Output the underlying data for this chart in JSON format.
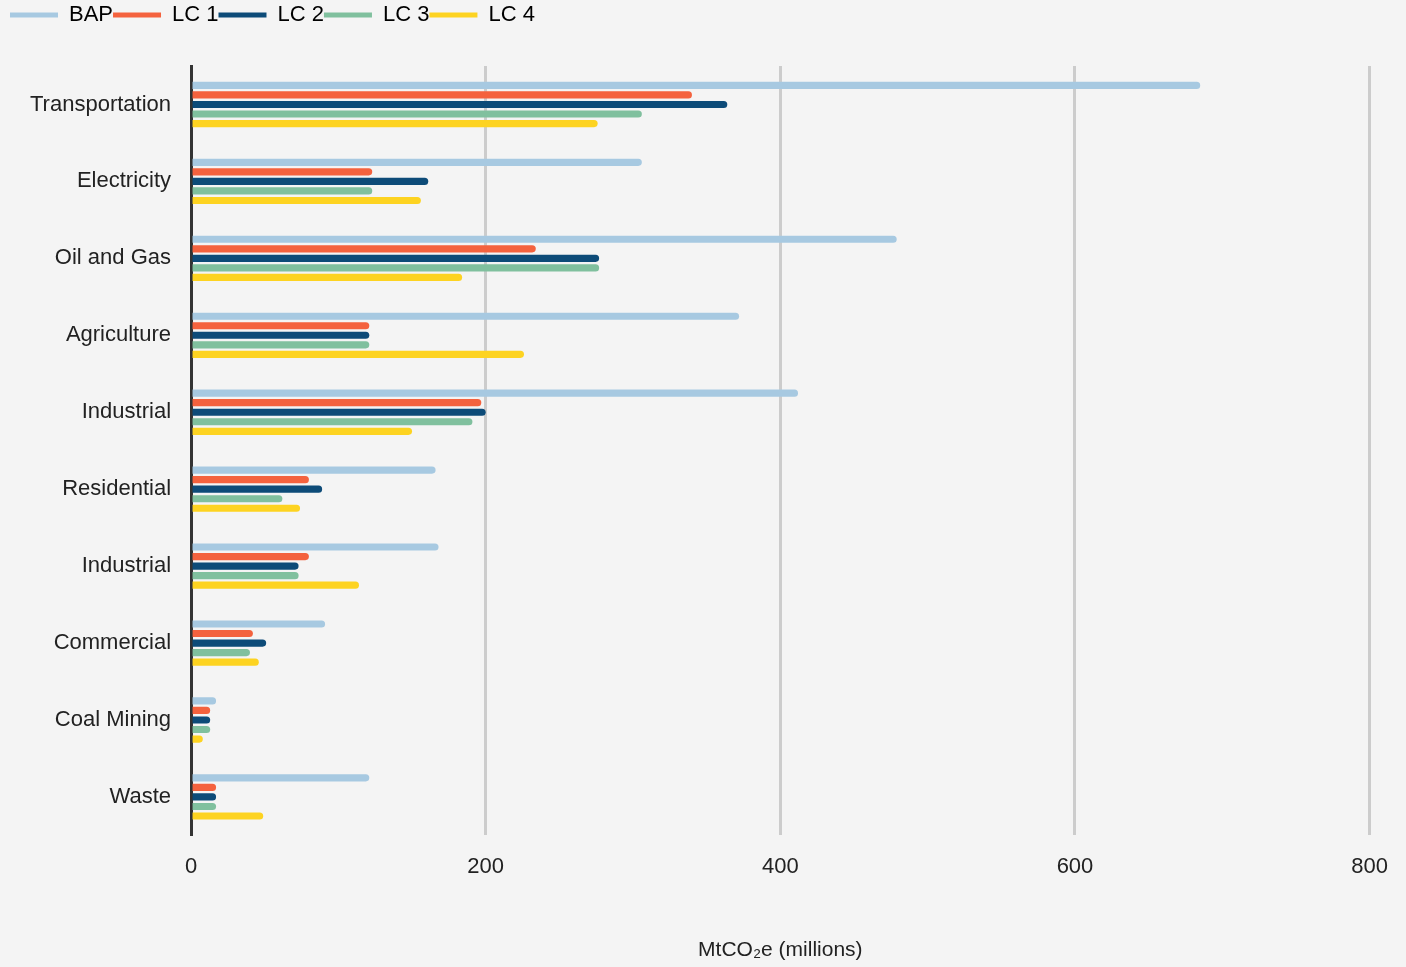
{
  "chart_data": {
    "type": "bar",
    "orientation": "horizontal",
    "xlabel": "MtCO₂e (millions)",
    "categories": [
      "Transportation",
      "Electricity",
      "Oil and Gas",
      "Agriculture",
      "Industrial",
      "Residential",
      "Industrial",
      "Commercial",
      "Coal Mining",
      "Waste"
    ],
    "series": [
      {
        "name": "BAP",
        "color": "#a7c9e1",
        "values": [
          685,
          306,
          479,
          372,
          412,
          166,
          168,
          91,
          17,
          121
        ]
      },
      {
        "name": "LC 1",
        "color": "#f4623e",
        "values": [
          340,
          123,
          234,
          121,
          197,
          80,
          80,
          42,
          13,
          17
        ]
      },
      {
        "name": "LC 2",
        "color": "#0d4b78",
        "values": [
          364,
          161,
          277,
          121,
          200,
          89,
          73,
          51,
          13,
          17
        ]
      },
      {
        "name": "LC 3",
        "color": "#80c09e",
        "values": [
          306,
          123,
          277,
          121,
          191,
          62,
          73,
          40,
          13,
          17
        ]
      },
      {
        "name": "LC 4",
        "color": "#fdd321",
        "values": [
          276,
          156,
          184,
          226,
          150,
          74,
          114,
          46,
          8,
          49
        ]
      }
    ],
    "xlim": [
      0,
      800
    ],
    "xticks": [
      0,
      200,
      400,
      600,
      800
    ],
    "grid": "x",
    "legend": "top"
  }
}
